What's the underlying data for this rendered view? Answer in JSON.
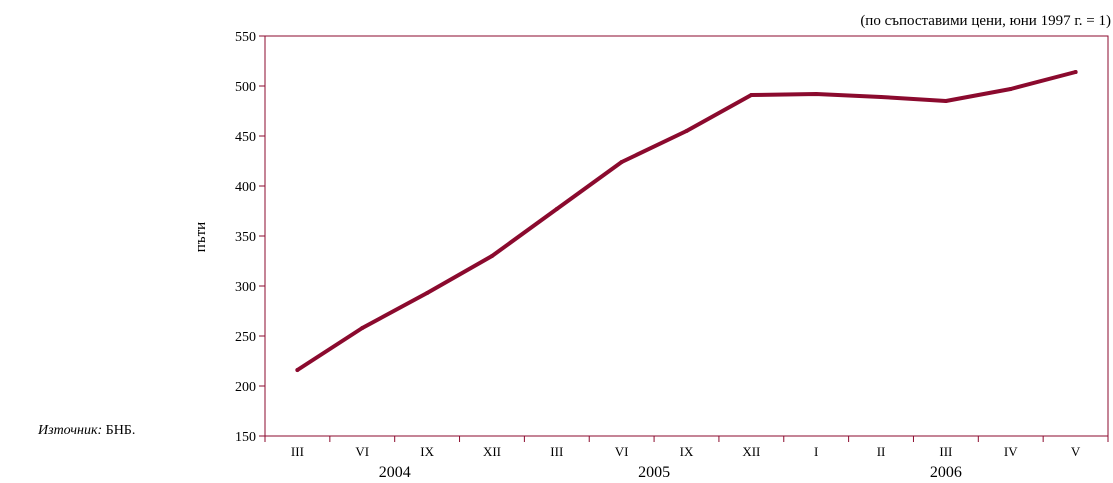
{
  "note": "(по съпоставими цени, юни 1997 г. = 1)",
  "source": {
    "label": "Източник:",
    "text": "БНБ."
  },
  "chart_data": {
    "type": "line",
    "ylabel": "пъти",
    "ylim": [
      150,
      550
    ],
    "yticks": [
      150,
      200,
      250,
      300,
      350,
      400,
      450,
      500,
      550
    ],
    "categories": [
      "III",
      "VI",
      "IX",
      "XII",
      "III",
      "VI",
      "IX",
      "XII",
      "I",
      "II",
      "III",
      "IV",
      "V"
    ],
    "year_groups": [
      {
        "label": "2004",
        "start": 0,
        "end": 3
      },
      {
        "label": "2005",
        "start": 4,
        "end": 7
      },
      {
        "label": "2006",
        "start": 8,
        "end": 12
      }
    ],
    "series": [
      {
        "color": "#8b0a2e",
        "values": [
          216,
          258,
          293,
          330,
          377,
          424,
          455,
          491,
          492,
          489,
          485,
          497,
          514
        ]
      }
    ],
    "grid": false,
    "legend": "none"
  }
}
